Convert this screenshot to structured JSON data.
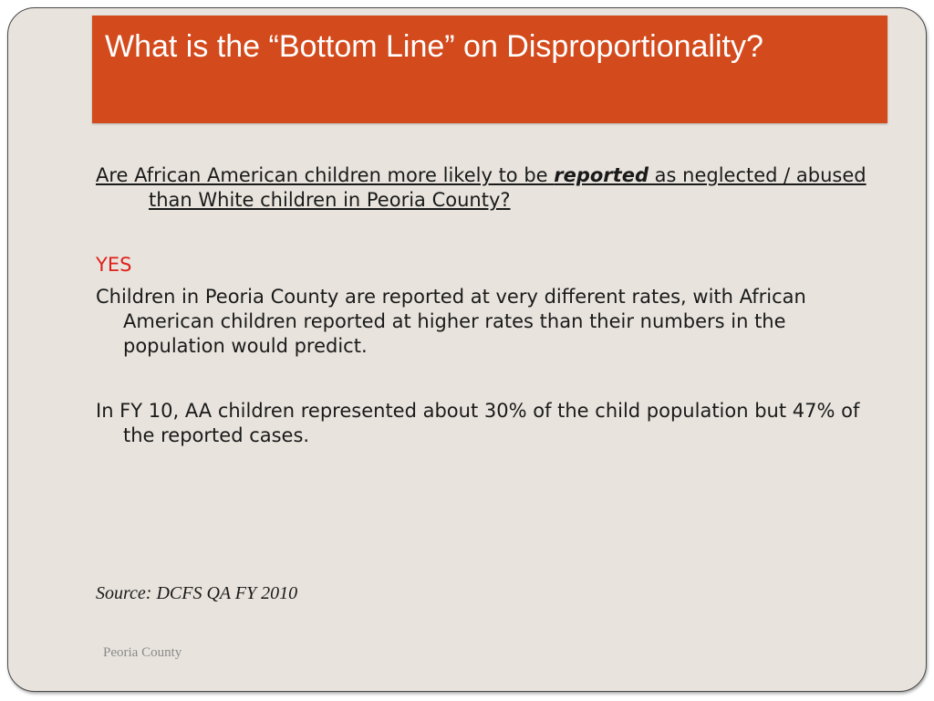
{
  "slide": {
    "title": "What is the “Bottom Line” on Disproportionality?",
    "question": {
      "before": "Are African American children more likely to be ",
      "emphasis": "reported",
      "after": " as neglected / abused than White children in Peoria County?"
    },
    "answer": "YES",
    "paragraphs": [
      "Children in Peoria County are reported at very different rates, with African American children reported at higher rates than their numbers in the population would predict.",
      "In FY 10, AA children represented about 30% of the child population but 47% of the reported cases."
    ],
    "source": "Source: DCFS QA FY 2010",
    "footer": "Peoria County"
  },
  "colors": {
    "title_bar": "#d34a1c",
    "title_text": "#ffffff",
    "background": "#e8e4dd",
    "answer": "#e0201b",
    "footer": "#8a8a8a"
  }
}
